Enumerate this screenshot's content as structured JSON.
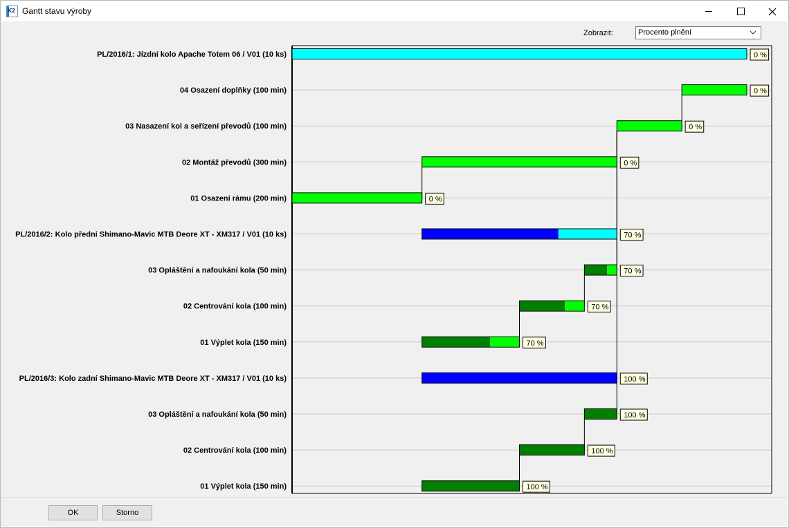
{
  "window": {
    "title": "Gantt stavu výroby"
  },
  "controls": {
    "zobrazit_label": "Zobrazit:",
    "zobrazit_value": "Procento plnění"
  },
  "buttons": {
    "ok": "OK",
    "storno": "Storno"
  },
  "colors": {
    "light_cyan": "#00ffff",
    "blue": "#0000ff",
    "light_green": "#00ff00",
    "dark_green": "#008000",
    "gridline": "#c8c8c8",
    "chart_bg": "#f0f0f0",
    "label_box": "#ffffe1"
  },
  "chart_data": {
    "type": "gantt",
    "time_range": [
      0,
      700
    ],
    "rows": [
      {
        "label": "PL/2016/1: Jízdní kolo Apache Totem 06 / V01 (10 ks)",
        "kind": "order",
        "start": 0,
        "end": 700,
        "percent_label": "0 %",
        "percent": 0
      },
      {
        "label": "04 Osazení doplňky (100 min)",
        "kind": "op",
        "start": 600,
        "end": 700,
        "percent_label": "0 %",
        "percent": 0
      },
      {
        "label": "03 Nasazení kol a seřízení převodů (100 min)",
        "kind": "op",
        "start": 500,
        "end": 600,
        "percent_label": "0 %",
        "percent": 0
      },
      {
        "label": "02 Montáž převodů (300 min)",
        "kind": "op",
        "start": 200,
        "end": 500,
        "percent_label": "0 %",
        "percent": 0
      },
      {
        "label": "01 Osazení rámu (200 min)",
        "kind": "op",
        "start": 0,
        "end": 200,
        "percent_label": "0 %",
        "percent": 0
      },
      {
        "label": "PL/2016/2: Kolo přední Shimano-Mavic MTB Deore XT - XM317 / V01 (10 ks)",
        "kind": "order",
        "start": 200,
        "end": 500,
        "percent_label": "70 %",
        "percent": 70
      },
      {
        "label": "03 Opláštění a nafoukání kola (50 min)",
        "kind": "op",
        "start": 450,
        "end": 500,
        "percent_label": "70 %",
        "percent": 70
      },
      {
        "label": "02 Centrování kola (100 min)",
        "kind": "op",
        "start": 350,
        "end": 450,
        "percent_label": "70 %",
        "percent": 70
      },
      {
        "label": "01 Výplet kola (150 min)",
        "kind": "op",
        "start": 200,
        "end": 350,
        "percent_label": "70 %",
        "percent": 70
      },
      {
        "label": "PL/2016/3: Kolo zadní Shimano-Mavic MTB Deore XT - XM317 / V01 (10 ks)",
        "kind": "order",
        "start": 200,
        "end": 500,
        "percent_label": "100 %",
        "percent": 100
      },
      {
        "label": "03 Opláštění a nafoukání kola (50 min)",
        "kind": "op",
        "start": 450,
        "end": 500,
        "percent_label": "100 %",
        "percent": 100
      },
      {
        "label": "02 Centrování kola (100 min)",
        "kind": "op",
        "start": 350,
        "end": 450,
        "percent_label": "100 %",
        "percent": 100
      },
      {
        "label": "01 Výplet kola (150 min)",
        "kind": "op",
        "start": 200,
        "end": 350,
        "percent_label": "100 %",
        "percent": 100
      }
    ],
    "dependencies": [
      [
        4,
        3
      ],
      [
        3,
        2
      ],
      [
        2,
        1
      ],
      [
        8,
        7
      ],
      [
        7,
        6
      ],
      [
        6,
        2
      ],
      [
        12,
        11
      ],
      [
        11,
        10
      ],
      [
        10,
        2
      ]
    ]
  }
}
